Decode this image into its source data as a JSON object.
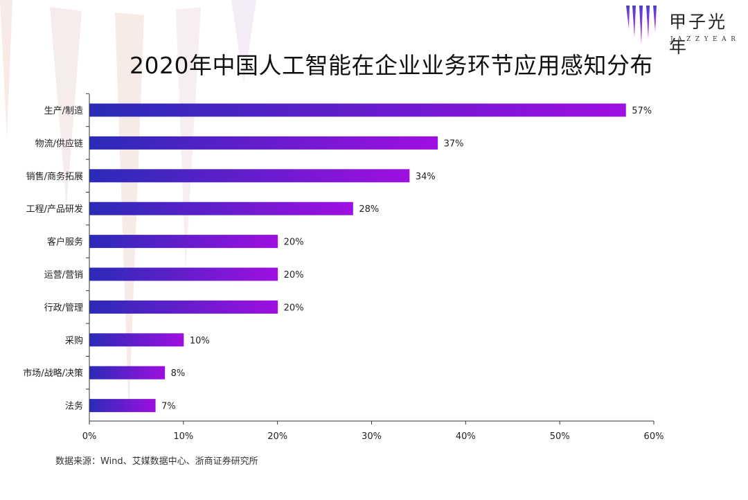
{
  "brand": {
    "name_cn": "甲子光年",
    "name_en": "JAZZYEAR"
  },
  "source": "数据来源：Wind、艾媒数据中心、浙商证券研究所",
  "chart_data": {
    "type": "bar",
    "orientation": "horizontal",
    "title": "2020年中国人工智能在企业业务环节应用感知分布",
    "categories": [
      "生产/制造",
      "物流/供应链",
      "销售/商务拓展",
      "工程/产品研发",
      "客户服务",
      "运营/营销",
      "行政/管理",
      "采购",
      "市场/战略/决策",
      "法务"
    ],
    "values": [
      57,
      37,
      34,
      28,
      20,
      20,
      20,
      10,
      8,
      7
    ],
    "value_labels": [
      "57%",
      "37%",
      "34%",
      "28%",
      "20%",
      "20%",
      "20%",
      "10%",
      "8%",
      "7%"
    ],
    "xlim": [
      0,
      60
    ],
    "x_ticks": [
      0,
      10,
      20,
      30,
      40,
      50,
      60
    ],
    "x_tick_labels": [
      "0%",
      "10%",
      "20%",
      "30%",
      "40%",
      "50%",
      "60%"
    ],
    "grid": false,
    "colors": {
      "bar_start": "#2a2bb8",
      "bar_end": "#9f0fe0",
      "axis": "#333333",
      "text": "#222222"
    }
  }
}
